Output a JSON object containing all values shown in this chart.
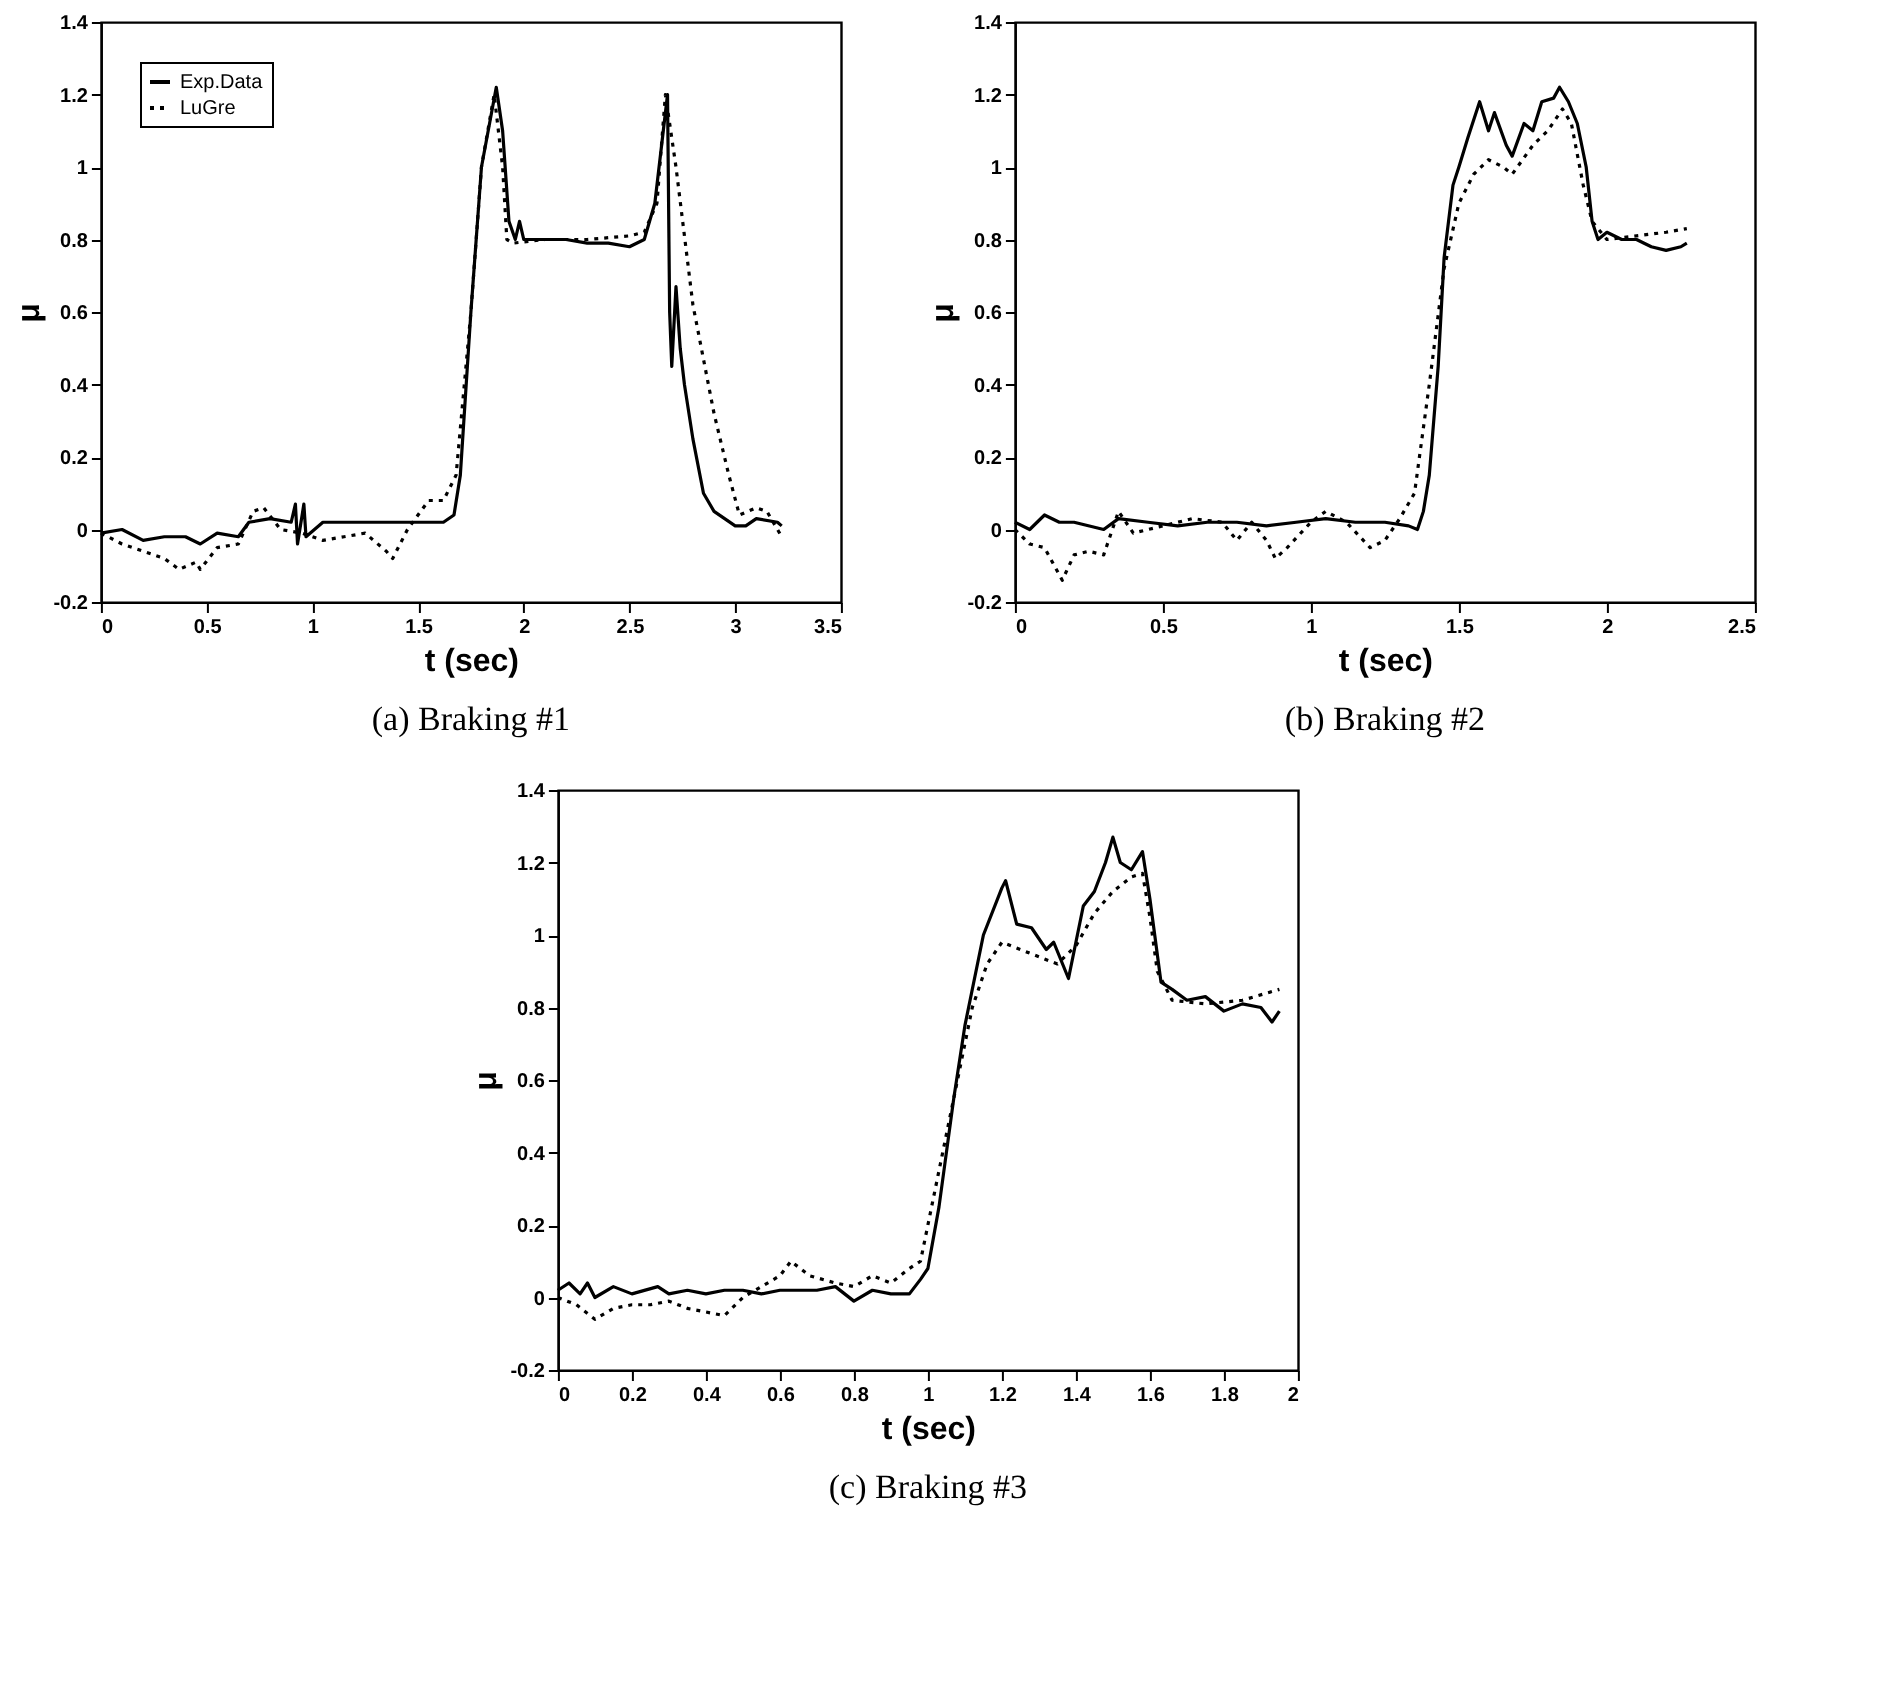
{
  "chart_data": [
    {
      "type": "line",
      "title": "(a) Braking #1",
      "xlabel": "t (sec)",
      "ylabel": "μ",
      "xlim": [
        0,
        3.5
      ],
      "xticks": [
        0,
        0.5,
        1,
        1.5,
        2,
        2.5,
        3,
        3.5
      ],
      "ylim": [
        -0.2,
        1.4
      ],
      "yticks": [
        -0.2,
        0,
        0.2,
        0.4,
        0.6,
        0.8,
        1,
        1.2,
        1.4
      ],
      "grid": false,
      "legend": "top left",
      "series": [
        {
          "name": "Exp.Data",
          "color": "#000000",
          "line_style": "solid",
          "x": [
            0,
            0.1,
            0.2,
            0.3,
            0.4,
            0.47,
            0.55,
            0.65,
            0.7,
            0.8,
            0.9,
            0.92,
            0.93,
            0.96,
            0.97,
            1.05,
            1.2,
            1.35,
            1.5,
            1.62,
            1.67,
            1.7,
            1.75,
            1.8,
            1.87,
            1.9,
            1.93,
            1.96,
            1.98,
            2.0,
            2.1,
            2.2,
            2.3,
            2.4,
            2.5,
            2.57,
            2.62,
            2.66,
            2.68,
            2.69,
            2.7,
            2.72,
            2.74,
            2.76,
            2.8,
            2.85,
            2.9,
            3.0,
            3.05,
            3.1,
            3.2,
            3.22
          ],
          "values": [
            -0.01,
            0.0,
            -0.03,
            -0.02,
            -0.02,
            -0.04,
            -0.01,
            -0.02,
            0.02,
            0.03,
            0.02,
            0.07,
            -0.04,
            0.07,
            -0.02,
            0.02,
            0.02,
            0.02,
            0.02,
            0.02,
            0.04,
            0.15,
            0.6,
            1.0,
            1.22,
            1.1,
            0.85,
            0.8,
            0.85,
            0.8,
            0.8,
            0.8,
            0.79,
            0.79,
            0.78,
            0.8,
            0.9,
            1.1,
            1.2,
            0.6,
            0.45,
            0.67,
            0.5,
            0.4,
            0.25,
            0.1,
            0.05,
            0.01,
            0.01,
            0.03,
            0.02,
            0.01
          ]
        },
        {
          "name": "LuGre",
          "color": "#000000",
          "line_style": "dotted",
          "x": [
            0,
            0.1,
            0.2,
            0.3,
            0.37,
            0.45,
            0.47,
            0.55,
            0.65,
            0.72,
            0.77,
            0.85,
            0.95,
            1.05,
            1.15,
            1.25,
            1.35,
            1.38,
            1.45,
            1.55,
            1.62,
            1.68,
            1.75,
            1.8,
            1.86,
            1.9,
            1.92,
            1.95,
            2.1,
            2.3,
            2.5,
            2.57,
            2.63,
            2.67,
            2.72,
            2.8,
            2.9,
            2.97,
            3.02,
            3.1,
            3.15,
            3.22
          ],
          "values": [
            -0.01,
            -0.04,
            -0.06,
            -0.08,
            -0.11,
            -0.09,
            -0.11,
            -0.05,
            -0.04,
            0.05,
            0.06,
            0.0,
            -0.01,
            -0.03,
            -0.02,
            -0.01,
            -0.06,
            -0.08,
            0.0,
            0.08,
            0.08,
            0.15,
            0.6,
            1.0,
            1.2,
            1.0,
            0.8,
            0.79,
            0.8,
            0.8,
            0.81,
            0.82,
            0.9,
            1.2,
            1.0,
            0.62,
            0.32,
            0.15,
            0.04,
            0.06,
            0.05,
            -0.02
          ]
        }
      ]
    },
    {
      "type": "line",
      "title": "(b) Braking #2",
      "xlabel": "t (sec)",
      "ylabel": "μ",
      "xlim": [
        0,
        2.5
      ],
      "xticks": [
        0,
        0.5,
        1,
        1.5,
        2,
        2.5
      ],
      "ylim": [
        -0.2,
        1.4
      ],
      "yticks": [
        -0.2,
        0,
        0.2,
        0.4,
        0.6,
        0.8,
        1,
        1.2,
        1.4
      ],
      "grid": false,
      "legend": "top left",
      "series": [
        {
          "name": "Exp.Data",
          "color": "#000000",
          "line_style": "solid",
          "x": [
            0,
            0.05,
            0.1,
            0.15,
            0.2,
            0.3,
            0.35,
            0.45,
            0.55,
            0.65,
            0.75,
            0.85,
            0.95,
            1.05,
            1.15,
            1.25,
            1.33,
            1.36,
            1.38,
            1.4,
            1.43,
            1.45,
            1.48,
            1.5,
            1.53,
            1.57,
            1.6,
            1.62,
            1.66,
            1.68,
            1.72,
            1.75,
            1.78,
            1.82,
            1.84,
            1.87,
            1.9,
            1.93,
            1.95,
            1.97,
            2.0,
            2.05,
            2.1,
            2.15,
            2.2,
            2.25,
            2.27
          ],
          "values": [
            0.02,
            0.0,
            0.04,
            0.02,
            0.02,
            0.0,
            0.03,
            0.02,
            0.01,
            0.02,
            0.02,
            0.01,
            0.02,
            0.03,
            0.02,
            0.02,
            0.01,
            0.0,
            0.05,
            0.15,
            0.45,
            0.75,
            0.95,
            1.0,
            1.08,
            1.18,
            1.1,
            1.15,
            1.06,
            1.03,
            1.12,
            1.1,
            1.18,
            1.19,
            1.22,
            1.18,
            1.12,
            1.0,
            0.85,
            0.8,
            0.82,
            0.8,
            0.8,
            0.78,
            0.77,
            0.78,
            0.79
          ]
        },
        {
          "name": "LuGre",
          "color": "#000000",
          "line_style": "dotted",
          "x": [
            0,
            0.05,
            0.1,
            0.16,
            0.2,
            0.25,
            0.3,
            0.35,
            0.4,
            0.5,
            0.6,
            0.7,
            0.75,
            0.8,
            0.85,
            0.88,
            0.92,
            1.0,
            1.05,
            1.12,
            1.2,
            1.25,
            1.3,
            1.35,
            1.4,
            1.45,
            1.5,
            1.55,
            1.6,
            1.65,
            1.68,
            1.75,
            1.8,
            1.85,
            1.88,
            1.92,
            1.95,
            2.0,
            2.1,
            2.2,
            2.27
          ],
          "values": [
            0.0,
            -0.04,
            -0.05,
            -0.14,
            -0.07,
            -0.06,
            -0.07,
            0.05,
            -0.01,
            0.01,
            0.03,
            0.02,
            -0.03,
            0.02,
            -0.03,
            -0.08,
            -0.05,
            0.02,
            0.05,
            0.02,
            -0.05,
            -0.03,
            0.03,
            0.1,
            0.4,
            0.72,
            0.9,
            0.98,
            1.02,
            1.0,
            0.98,
            1.06,
            1.1,
            1.16,
            1.12,
            0.95,
            0.85,
            0.8,
            0.81,
            0.82,
            0.83
          ]
        }
      ]
    },
    {
      "type": "line",
      "title": "(c) Braking #3",
      "xlabel": "t (sec)",
      "ylabel": "μ",
      "xlim": [
        0,
        2
      ],
      "xticks": [
        0,
        0.2,
        0.4,
        0.6,
        0.8,
        1,
        1.2,
        1.4,
        1.6,
        1.8,
        2
      ],
      "ylim": [
        -0.2,
        1.4
      ],
      "yticks": [
        -0.2,
        0,
        0.2,
        0.4,
        0.6,
        0.8,
        1,
        1.2,
        1.4
      ],
      "grid": false,
      "legend": "top left",
      "series": [
        {
          "name": "Exp.Data",
          "color": "#000000",
          "line_style": "solid",
          "x": [
            0,
            0.03,
            0.06,
            0.08,
            0.1,
            0.15,
            0.2,
            0.27,
            0.3,
            0.35,
            0.4,
            0.45,
            0.5,
            0.55,
            0.6,
            0.7,
            0.75,
            0.8,
            0.85,
            0.9,
            0.95,
            0.98,
            1.0,
            1.03,
            1.07,
            1.1,
            1.15,
            1.2,
            1.21,
            1.24,
            1.28,
            1.32,
            1.34,
            1.38,
            1.42,
            1.45,
            1.48,
            1.5,
            1.52,
            1.55,
            1.58,
            1.6,
            1.63,
            1.66,
            1.7,
            1.75,
            1.8,
            1.85,
            1.9,
            1.93,
            1.95
          ],
          "values": [
            0.02,
            0.04,
            0.01,
            0.04,
            0.0,
            0.03,
            0.01,
            0.03,
            0.01,
            0.02,
            0.01,
            0.02,
            0.02,
            0.01,
            0.02,
            0.02,
            0.03,
            -0.01,
            0.02,
            0.01,
            0.01,
            0.05,
            0.08,
            0.25,
            0.55,
            0.75,
            1.0,
            1.13,
            1.15,
            1.03,
            1.02,
            0.96,
            0.98,
            0.88,
            1.08,
            1.12,
            1.2,
            1.27,
            1.2,
            1.18,
            1.23,
            1.1,
            0.87,
            0.85,
            0.82,
            0.83,
            0.79,
            0.81,
            0.8,
            0.76,
            0.79
          ]
        },
        {
          "name": "LuGre",
          "color": "#000000",
          "line_style": "dotted",
          "x": [
            0,
            0.05,
            0.1,
            0.15,
            0.2,
            0.25,
            0.3,
            0.35,
            0.4,
            0.45,
            0.5,
            0.55,
            0.6,
            0.63,
            0.68,
            0.75,
            0.8,
            0.85,
            0.9,
            0.95,
            0.98,
            1.02,
            1.07,
            1.12,
            1.16,
            1.2,
            1.25,
            1.3,
            1.35,
            1.4,
            1.45,
            1.5,
            1.55,
            1.58,
            1.6,
            1.62,
            1.66,
            1.75,
            1.85,
            1.95
          ],
          "values": [
            0.0,
            -0.02,
            -0.06,
            -0.03,
            -0.02,
            -0.02,
            -0.01,
            -0.03,
            -0.04,
            -0.05,
            0.0,
            0.03,
            0.06,
            0.1,
            0.06,
            0.04,
            0.03,
            0.06,
            0.04,
            0.08,
            0.1,
            0.3,
            0.55,
            0.8,
            0.92,
            0.98,
            0.96,
            0.94,
            0.92,
            0.97,
            1.06,
            1.12,
            1.16,
            1.17,
            1.05,
            0.9,
            0.82,
            0.81,
            0.82,
            0.85
          ]
        }
      ]
    }
  ]
}
